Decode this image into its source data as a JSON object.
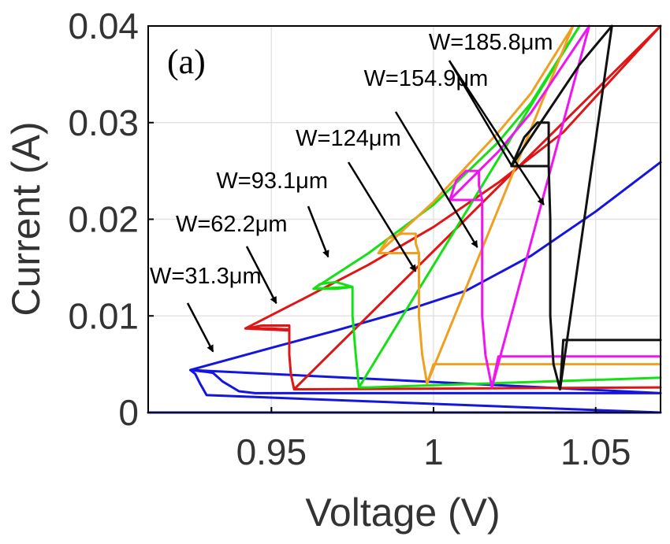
{
  "chart_data": {
    "type": "line",
    "panel_label": "(a)",
    "xlabel": "Voltage (V)",
    "ylabel": "Current (A)",
    "xlim": [
      0.912,
      1.07
    ],
    "ylim": [
      0,
      0.04
    ],
    "x_ticks": [
      0.95,
      1.0,
      1.05
    ],
    "x_tick_labels": [
      "0.95",
      "1",
      "1.05"
    ],
    "y_ticks": [
      0,
      0.01,
      0.02,
      0.03,
      0.04
    ],
    "y_tick_labels": [
      "0",
      "0.01",
      "0.02",
      "0.03",
      "0.04"
    ],
    "grid": true,
    "series": [
      {
        "name": "W=31.3μm",
        "color": "#1515e0",
        "points": [
          [
            0.912,
            0
          ],
          [
            1.07,
            0
          ],
          [
            0.93,
            0.0018
          ],
          [
            0.928,
            0.003
          ],
          [
            0.9265,
            0.004
          ],
          [
            0.925,
            0.0044
          ],
          [
            0.93,
            0.0042
          ],
          [
            0.932,
            0.0041
          ],
          [
            0.933,
            0.0038
          ],
          [
            0.935,
            0.0032
          ],
          [
            0.94,
            0.0022
          ],
          [
            0.945,
            0.002
          ],
          [
            1.07,
            0.002
          ],
          [
            0.925,
            0.0044
          ],
          [
            0.95,
            0.0067
          ],
          [
            0.97,
            0.0085
          ],
          [
            0.99,
            0.0104
          ],
          [
            1.01,
            0.0126
          ],
          [
            1.03,
            0.0162
          ],
          [
            1.05,
            0.0208
          ],
          [
            1.07,
            0.0259
          ]
        ]
      },
      {
        "name": "W=62.2μm",
        "color": "#e01515",
        "points": [
          [
            0.957,
            0.0024
          ],
          [
            0.956,
            0.004
          ],
          [
            0.9555,
            0.006
          ],
          [
            0.9555,
            0.0085
          ],
          [
            0.9555,
            0.009
          ],
          [
            0.95,
            0.009
          ],
          [
            0.947,
            0.009
          ],
          [
            0.944,
            0.0088
          ],
          [
            0.942,
            0.0087
          ],
          [
            0.95,
            0.0087
          ],
          [
            0.955,
            0.0086
          ],
          [
            0.9555,
            0.0085
          ],
          [
            0.942,
            0.0087
          ],
          [
            0.96,
            0.0118
          ],
          [
            0.98,
            0.0153
          ],
          [
            1.0,
            0.0192
          ],
          [
            1.02,
            0.0238
          ],
          [
            1.04,
            0.029
          ],
          [
            1.07,
            0.04
          ],
          [
            0.957,
            0.0024
          ],
          [
            0.96,
            0.0024
          ],
          [
            1.07,
            0.0026
          ]
        ]
      },
      {
        "name": "W=93.1μm",
        "color": "#15e015",
        "points": [
          [
            0.977,
            0.0026
          ],
          [
            0.976,
            0.006
          ],
          [
            0.975,
            0.01
          ],
          [
            0.975,
            0.013
          ],
          [
            0.97,
            0.0135
          ],
          [
            0.965,
            0.0133
          ],
          [
            0.963,
            0.0128
          ],
          [
            0.97,
            0.0128
          ],
          [
            0.975,
            0.013
          ],
          [
            0.963,
            0.0128
          ],
          [
            0.98,
            0.0165
          ],
          [
            1.0,
            0.0215
          ],
          [
            1.02,
            0.028
          ],
          [
            1.03,
            0.032
          ],
          [
            1.045,
            0.04
          ],
          [
            0.977,
            0.0026
          ],
          [
            0.98,
            0.0026
          ],
          [
            1.07,
            0.0036
          ]
        ]
      },
      {
        "name": "W=124μm",
        "color": "#f0a020",
        "points": [
          [
            0.998,
            0.003
          ],
          [
            0.9965,
            0.006
          ],
          [
            0.9955,
            0.01
          ],
          [
            0.9955,
            0.0165
          ],
          [
            0.9945,
            0.0175
          ],
          [
            0.9945,
            0.0185
          ],
          [
            0.99,
            0.0185
          ],
          [
            0.986,
            0.018
          ],
          [
            0.983,
            0.0165
          ],
          [
            0.99,
            0.0165
          ],
          [
            0.9955,
            0.0165
          ],
          [
            0.983,
            0.0165
          ],
          [
            1.0,
            0.0218
          ],
          [
            1.02,
            0.029
          ],
          [
            1.03,
            0.033
          ],
          [
            1.043,
            0.04
          ],
          [
            0.998,
            0.003
          ],
          [
            1.0,
            0.005
          ],
          [
            1.07,
            0.005
          ]
        ]
      },
      {
        "name": "W=154.9μm",
        "color": "#f015f0",
        "points": [
          [
            1.018,
            0.0026
          ],
          [
            1.016,
            0.006
          ],
          [
            1.015,
            0.01
          ],
          [
            1.015,
            0.022
          ],
          [
            1.014,
            0.0235
          ],
          [
            1.014,
            0.025
          ],
          [
            1.01,
            0.025
          ],
          [
            1.007,
            0.024
          ],
          [
            1.005,
            0.022
          ],
          [
            1.01,
            0.022
          ],
          [
            1.015,
            0.022
          ],
          [
            1.005,
            0.022
          ],
          [
            1.02,
            0.027
          ],
          [
            1.03,
            0.031
          ],
          [
            1.04,
            0.036
          ],
          [
            1.048,
            0.04
          ],
          [
            1.018,
            0.0026
          ],
          [
            1.02,
            0.0058
          ],
          [
            1.07,
            0.0058
          ]
        ]
      },
      {
        "name": "W=185.8μm",
        "color": "#111111",
        "points": [
          [
            1.039,
            0.0024
          ],
          [
            1.037,
            0.005
          ],
          [
            1.036,
            0.01
          ],
          [
            1.036,
            0.02
          ],
          [
            1.0355,
            0.0255
          ],
          [
            1.0355,
            0.03
          ],
          [
            1.032,
            0.03
          ],
          [
            1.028,
            0.0285
          ],
          [
            1.024,
            0.0255
          ],
          [
            1.03,
            0.0255
          ],
          [
            1.0355,
            0.0255
          ],
          [
            1.024,
            0.0255
          ],
          [
            1.035,
            0.031
          ],
          [
            1.045,
            0.036
          ],
          [
            1.055,
            0.04
          ],
          [
            1.039,
            0.0024
          ],
          [
            1.04,
            0.0075
          ],
          [
            1.07,
            0.0075
          ]
        ]
      }
    ],
    "annotations": [
      {
        "text": "W=31.3μm",
        "x": 0.9125,
        "y": 0.01335,
        "arrow_to": [
          0.932,
          0.0063
        ]
      },
      {
        "text": "W=62.2μm",
        "x": 0.9205,
        "y": 0.01875,
        "arrow_to": [
          0.9515,
          0.0113
        ]
      },
      {
        "text": "W=93.1μm",
        "x": 0.933,
        "y": 0.0232,
        "arrow_to": [
          0.9675,
          0.0161
        ]
      },
      {
        "text": "W=124μm",
        "x": 0.9575,
        "y": 0.0276,
        "arrow_to": [
          0.9945,
          0.0146
        ]
      },
      {
        "text": "W=154.9μm",
        "x": 0.9785,
        "y": 0.0338,
        "arrow_to": [
          1.0135,
          0.0171
        ]
      },
      {
        "text": "W=185.8μm",
        "x": 0.9985,
        "y": 0.03755,
        "arrow_to": [
          1.034,
          0.0215
        ],
        "arrow_to_2": [
          1.024,
          0.0256
        ]
      }
    ]
  }
}
